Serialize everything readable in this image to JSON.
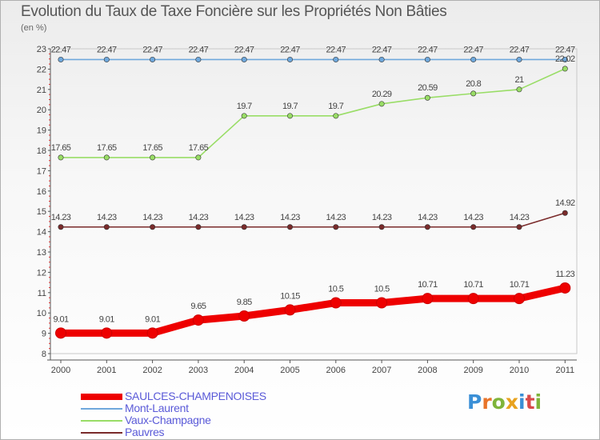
{
  "title": "Evolution du Taux de Taxe Foncière sur les Propriétés Non Bâties",
  "subtitle": "(en %)",
  "logo": {
    "text": "Proxiti",
    "letter_colors": [
      "#3a8fd6",
      "#e8742a",
      "#7fb43a",
      "#e8a21e",
      "#3a8fd6",
      "#d84a4a",
      "#7fb43a"
    ]
  },
  "chart_data": {
    "type": "line",
    "title": "Evolution du Taux de Taxe Foncière sur les Propriétés Non Bâties",
    "ylabel": "(en %)",
    "xlabel": "",
    "categories": [
      "2000",
      "2001",
      "2002",
      "2003",
      "2004",
      "2005",
      "2006",
      "2007",
      "2008",
      "2009",
      "2010",
      "2011"
    ],
    "ylim": [
      8,
      23
    ],
    "yticks": [
      "8",
      "9",
      "10",
      "11",
      "12",
      "13",
      "14",
      "15",
      "16",
      "17",
      "18",
      "19",
      "20",
      "21",
      "22",
      "23"
    ],
    "legend_position": "bottom-left",
    "series": [
      {
        "name": "SAULCES-CHAMPENOISES",
        "color": "#ee0000",
        "values": [
          9.01,
          9.01,
          9.01,
          9.65,
          9.85,
          10.15,
          10.5,
          10.5,
          10.71,
          10.71,
          10.71,
          11.23
        ],
        "labels": [
          "9.01",
          "9.01",
          "9.01",
          "9.65",
          "9.85",
          "10.15",
          "10.5",
          "10.5",
          "10.71",
          "10.71",
          "10.71",
          "11.23"
        ]
      },
      {
        "name": "Mont-Laurent",
        "color": "#6fa8dc",
        "values": [
          22.47,
          22.47,
          22.47,
          22.47,
          22.47,
          22.47,
          22.47,
          22.47,
          22.47,
          22.47,
          22.47,
          22.47
        ],
        "labels": [
          "22.47",
          "22.47",
          "22.47",
          "22.47",
          "22.47",
          "22.47",
          "22.47",
          "22.47",
          "22.47",
          "22.47",
          "22.47",
          "22.47"
        ]
      },
      {
        "name": "Vaux-Champagne",
        "color": "#99dd66",
        "values": [
          17.65,
          17.65,
          17.65,
          17.65,
          19.7,
          19.7,
          19.7,
          20.29,
          20.59,
          20.8,
          21,
          22.02
        ],
        "labels": [
          "17.65",
          "17.65",
          "17.65",
          "17.65",
          "19.7",
          "19.7",
          "19.7",
          "20.29",
          "20.59",
          "20.8",
          "21",
          "22.02"
        ]
      },
      {
        "name": "Pauvres",
        "color": "#7a2b2b",
        "values": [
          14.23,
          14.23,
          14.23,
          14.23,
          14.23,
          14.23,
          14.23,
          14.23,
          14.23,
          14.23,
          14.23,
          14.92
        ],
        "labels": [
          "14.23",
          "14.23",
          "14.23",
          "14.23",
          "14.23",
          "14.23",
          "14.23",
          "14.23",
          "14.23",
          "14.23",
          "14.23",
          "14.92"
        ]
      }
    ]
  }
}
